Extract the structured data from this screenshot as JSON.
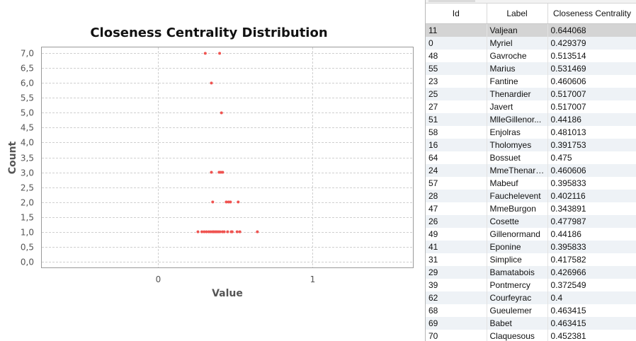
{
  "chart_data": {
    "type": "scatter",
    "title": "Closeness Centrality Distribution",
    "xlabel": "Value",
    "ylabel": "Count",
    "xlim": [
      -0.75,
      1.65
    ],
    "ylim": [
      -0.2,
      7.2
    ],
    "x_ticks": [
      {
        "v": 0,
        "label": "0"
      },
      {
        "v": 1,
        "label": "1"
      }
    ],
    "y_ticks": [
      {
        "v": 0.0,
        "label": "0,0"
      },
      {
        "v": 0.5,
        "label": "0,5"
      },
      {
        "v": 1.0,
        "label": "1,0"
      },
      {
        "v": 1.5,
        "label": "1,5"
      },
      {
        "v": 2.0,
        "label": "2,0"
      },
      {
        "v": 2.5,
        "label": "2,5"
      },
      {
        "v": 3.0,
        "label": "3,0"
      },
      {
        "v": 3.5,
        "label": "3,5"
      },
      {
        "v": 4.0,
        "label": "4,0"
      },
      {
        "v": 4.5,
        "label": "4,5"
      },
      {
        "v": 5.0,
        "label": "5,0"
      },
      {
        "v": 5.5,
        "label": "5,5"
      },
      {
        "v": 6.0,
        "label": "6,0"
      },
      {
        "v": 6.5,
        "label": "6,5"
      },
      {
        "v": 7.0,
        "label": "7,0"
      }
    ],
    "grid": true,
    "point_color": "#ef5350",
    "points": [
      {
        "x": 0.307,
        "y": 7
      },
      {
        "x": 0.4,
        "y": 7
      },
      {
        "x": 0.347,
        "y": 6
      },
      {
        "x": 0.412,
        "y": 5
      },
      {
        "x": 0.347,
        "y": 3
      },
      {
        "x": 0.397,
        "y": 3
      },
      {
        "x": 0.408,
        "y": 3
      },
      {
        "x": 0.42,
        "y": 3
      },
      {
        "x": 0.355,
        "y": 2
      },
      {
        "x": 0.443,
        "y": 2
      },
      {
        "x": 0.458,
        "y": 2
      },
      {
        "x": 0.47,
        "y": 2
      },
      {
        "x": 0.52,
        "y": 2
      },
      {
        "x": 0.26,
        "y": 1
      },
      {
        "x": 0.285,
        "y": 1
      },
      {
        "x": 0.3,
        "y": 1
      },
      {
        "x": 0.315,
        "y": 1
      },
      {
        "x": 0.33,
        "y": 1
      },
      {
        "x": 0.343,
        "y": 1
      },
      {
        "x": 0.355,
        "y": 1
      },
      {
        "x": 0.362,
        "y": 1
      },
      {
        "x": 0.372,
        "y": 1
      },
      {
        "x": 0.381,
        "y": 1
      },
      {
        "x": 0.391,
        "y": 1
      },
      {
        "x": 0.402,
        "y": 1
      },
      {
        "x": 0.418,
        "y": 1
      },
      {
        "x": 0.43,
        "y": 1
      },
      {
        "x": 0.452,
        "y": 1
      },
      {
        "x": 0.475,
        "y": 1
      },
      {
        "x": 0.481,
        "y": 1
      },
      {
        "x": 0.513,
        "y": 1
      },
      {
        "x": 0.531,
        "y": 1
      },
      {
        "x": 0.644,
        "y": 1
      }
    ]
  },
  "table": {
    "columns": [
      "Id",
      "Label",
      "Closeness Centrality"
    ],
    "selected_row": 0,
    "rows": [
      [
        "11",
        "Valjean",
        "0.644068"
      ],
      [
        "0",
        "Myriel",
        "0.429379"
      ],
      [
        "48",
        "Gavroche",
        "0.513514"
      ],
      [
        "55",
        "Marius",
        "0.531469"
      ],
      [
        "23",
        "Fantine",
        "0.460606"
      ],
      [
        "25",
        "Thenardier",
        "0.517007"
      ],
      [
        "27",
        "Javert",
        "0.517007"
      ],
      [
        "51",
        "MlleGillenor...",
        "0.44186"
      ],
      [
        "58",
        "Enjolras",
        "0.481013"
      ],
      [
        "16",
        "Tholomyes",
        "0.391753"
      ],
      [
        "64",
        "Bossuet",
        "0.475"
      ],
      [
        "24",
        "MmeThenard...",
        "0.460606"
      ],
      [
        "57",
        "Mabeuf",
        "0.395833"
      ],
      [
        "28",
        "Fauchelevent",
        "0.402116"
      ],
      [
        "47",
        "MmeBurgon",
        "0.343891"
      ],
      [
        "26",
        "Cosette",
        "0.477987"
      ],
      [
        "49",
        "Gillenormand",
        "0.44186"
      ],
      [
        "41",
        "Eponine",
        "0.395833"
      ],
      [
        "31",
        "Simplice",
        "0.417582"
      ],
      [
        "29",
        "Bamatabois",
        "0.426966"
      ],
      [
        "39",
        "Pontmercy",
        "0.372549"
      ],
      [
        "62",
        "Courfeyrac",
        "0.4"
      ],
      [
        "68",
        "Gueulemer",
        "0.463415"
      ],
      [
        "69",
        "Babet",
        "0.463415"
      ],
      [
        "70",
        "Claquesous",
        "0.452381"
      ]
    ]
  }
}
